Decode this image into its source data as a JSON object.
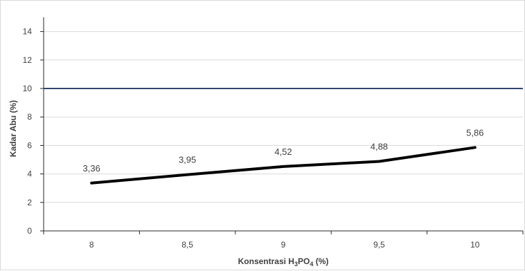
{
  "chart_data": {
    "type": "line",
    "x": [
      "8",
      "8,5",
      "9",
      "9,5",
      "10"
    ],
    "series": [
      {
        "values": [
          3.36,
          3.95,
          4.52,
          4.88,
          5.86
        ],
        "labels": [
          "3,36",
          "3,95",
          "4,52",
          "4,88",
          "5,86"
        ],
        "color": "#000000"
      }
    ],
    "reference_line": {
      "value": 10,
      "color": "#2f4570"
    },
    "xlabel_main": "Konsentrasi  H",
    "xlabel_sub1": "3",
    "xlabel_mid": "PO",
    "xlabel_sub2": "4",
    "xlabel_end": " (%)",
    "ylabel": "Kadar Abu (%)",
    "y_ticks": [
      "0",
      "2",
      "4",
      "6",
      "8",
      "10",
      "12",
      "14"
    ],
    "ylim": [
      0,
      15
    ],
    "grid": true
  }
}
